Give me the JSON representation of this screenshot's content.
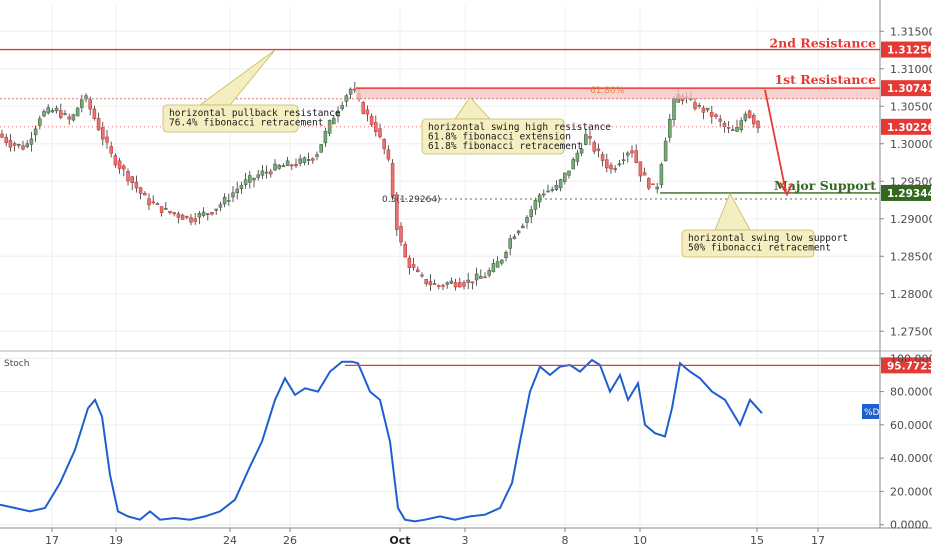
{
  "chart_data": [
    {
      "type": "candlestick",
      "ylim": [
        1.2725,
        1.3185
      ],
      "y_ticks": [
        "1.31500",
        "1.31000",
        "1.30500",
        "1.30000",
        "1.29500",
        "1.29000",
        "1.28500",
        "1.28000",
        "1.27500"
      ],
      "y_tick_values": [
        1.315,
        1.31,
        1.305,
        1.3,
        1.295,
        1.29,
        1.285,
        1.28,
        1.275
      ],
      "x_ticks": [
        "17",
        "19",
        "24",
        "26",
        "Oct",
        "3",
        "8",
        "10",
        "15",
        "17"
      ],
      "x_tick_bold": [
        "Oct"
      ],
      "price_anchors": [
        [
          0,
          1.3015
        ],
        [
          15,
          1.3
        ],
        [
          30,
          1.2995
        ],
        [
          45,
          1.304
        ],
        [
          60,
          1.3045
        ],
        [
          75,
          1.303
        ],
        [
          88,
          1.3065
        ],
        [
          100,
          1.303
        ],
        [
          115,
          1.2985
        ],
        [
          130,
          1.296
        ],
        [
          150,
          1.2925
        ],
        [
          170,
          1.291
        ],
        [
          195,
          1.29
        ],
        [
          215,
          1.291
        ],
        [
          230,
          1.2925
        ],
        [
          245,
          1.2945
        ],
        [
          265,
          1.296
        ],
        [
          285,
          1.297
        ],
        [
          305,
          1.2975
        ],
        [
          320,
          1.2985
        ],
        [
          335,
          1.303
        ],
        [
          350,
          1.3065
        ],
        [
          356,
          1.3075
        ],
        [
          365,
          1.305
        ],
        [
          380,
          1.302
        ],
        [
          392,
          1.298
        ],
        [
          398,
          1.292
        ],
        [
          402,
          1.288
        ],
        [
          410,
          1.2845
        ],
        [
          425,
          1.282
        ],
        [
          440,
          1.281
        ],
        [
          455,
          1.2815
        ],
        [
          470,
          1.2815
        ],
        [
          490,
          1.2825
        ],
        [
          505,
          1.2845
        ],
        [
          515,
          1.2875
        ],
        [
          530,
          1.29
        ],
        [
          545,
          1.2935
        ],
        [
          560,
          1.294
        ],
        [
          575,
          1.297
        ],
        [
          590,
          1.301
        ],
        [
          600,
          1.299
        ],
        [
          615,
          1.2965
        ],
        [
          628,
          1.2985
        ],
        [
          635,
          1.2995
        ],
        [
          645,
          1.296
        ],
        [
          660,
          1.2935
        ],
        [
          670,
          1.301
        ],
        [
          680,
          1.3065
        ],
        [
          690,
          1.306
        ],
        [
          700,
          1.305
        ],
        [
          715,
          1.304
        ],
        [
          730,
          1.302
        ],
        [
          740,
          1.3015
        ],
        [
          750,
          1.3045
        ],
        [
          762,
          1.3023
        ]
      ],
      "levels": {
        "second_resistance": {
          "label": "2nd Resistance",
          "value": "1.31256",
          "color": "#e53935"
        },
        "first_resistance": {
          "label": "1st Resistance",
          "value": "1.30741",
          "color": "#e53935"
        },
        "current": {
          "value": "1.30226",
          "color": "#e53935"
        },
        "major_support": {
          "label": "Major Support",
          "value": "1.29344",
          "color": "#33691e"
        },
        "fib_618": {
          "label": "61.80%"
        },
        "fib_50": {
          "label": "0.5(1.29264)"
        }
      },
      "annotations": [
        {
          "lines": [
            "horizontal pullback resistance",
            "76.4% fibonacci retracement"
          ]
        },
        {
          "lines": [
            "horizontal swing high resistance",
            "61.8% fibonacci extension",
            "61.8% fibonacci retracement"
          ]
        },
        {
          "lines": [
            "horizontal swing low support",
            "50% fibonacci retracement"
          ]
        }
      ]
    },
    {
      "type": "line",
      "name": "Stoch",
      "ylim": [
        -2,
        102
      ],
      "y_ticks": [
        "100.0000",
        "80.0000",
        "60.0000",
        "40.0000",
        "20.0000",
        "0.0000"
      ],
      "y_tick_values": [
        100,
        80,
        60,
        40,
        20,
        0
      ],
      "level": {
        "value": "95.7723",
        "color": "#e53935"
      },
      "legend_tag": "%D",
      "line_color": "#1e5fd0",
      "points": [
        [
          0,
          12
        ],
        [
          15,
          10
        ],
        [
          30,
          8
        ],
        [
          45,
          10
        ],
        [
          60,
          25
        ],
        [
          75,
          45
        ],
        [
          88,
          70
        ],
        [
          95,
          75
        ],
        [
          102,
          65
        ],
        [
          110,
          30
        ],
        [
          118,
          8
        ],
        [
          128,
          5
        ],
        [
          140,
          3
        ],
        [
          150,
          8
        ],
        [
          160,
          3
        ],
        [
          175,
          4
        ],
        [
          190,
          3
        ],
        [
          205,
          5
        ],
        [
          220,
          8
        ],
        [
          235,
          15
        ],
        [
          250,
          35
        ],
        [
          262,
          50
        ],
        [
          275,
          75
        ],
        [
          285,
          88
        ],
        [
          295,
          78
        ],
        [
          305,
          82
        ],
        [
          318,
          80
        ],
        [
          330,
          92
        ],
        [
          342,
          98
        ],
        [
          352,
          98
        ],
        [
          358,
          97
        ],
        [
          370,
          80
        ],
        [
          380,
          75
        ],
        [
          390,
          50
        ],
        [
          398,
          10
        ],
        [
          405,
          3
        ],
        [
          415,
          2
        ],
        [
          425,
          3
        ],
        [
          440,
          5
        ],
        [
          455,
          3
        ],
        [
          470,
          5
        ],
        [
          485,
          6
        ],
        [
          500,
          10
        ],
        [
          512,
          25
        ],
        [
          520,
          50
        ],
        [
          530,
          80
        ],
        [
          540,
          95
        ],
        [
          550,
          90
        ],
        [
          560,
          95
        ],
        [
          570,
          96
        ],
        [
          580,
          92
        ],
        [
          592,
          99
        ],
        [
          600,
          96
        ],
        [
          610,
          80
        ],
        [
          620,
          90
        ],
        [
          628,
          75
        ],
        [
          638,
          85
        ],
        [
          645,
          60
        ],
        [
          655,
          55
        ],
        [
          665,
          53
        ],
        [
          672,
          70
        ],
        [
          680,
          97
        ],
        [
          690,
          92
        ],
        [
          700,
          88
        ],
        [
          712,
          80
        ],
        [
          725,
          75
        ],
        [
          740,
          60
        ],
        [
          750,
          75
        ],
        [
          762,
          67
        ]
      ]
    }
  ]
}
